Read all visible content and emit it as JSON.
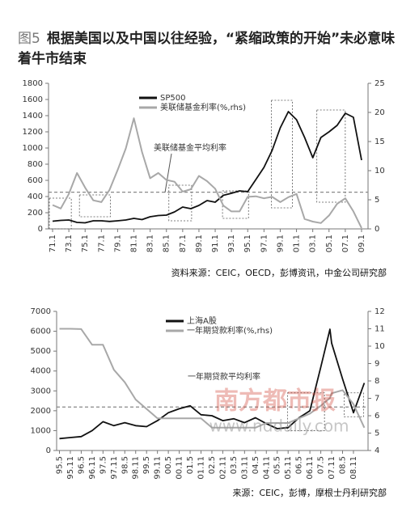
{
  "figure_label": "图5",
  "title": "根据美国以及中国以往经验，“紧缩政策的开始”未必意味着牛市结束",
  "watermark": [
    "南方都市报",
    "www.nddaily.com"
  ],
  "chart_data": [
    {
      "type": "line",
      "x": [
        1971,
        1972,
        1973,
        1974,
        1975,
        1976,
        1977,
        1978,
        1979,
        1980,
        1981,
        1982,
        1983,
        1984,
        1985,
        1986,
        1987,
        1988,
        1989,
        1990,
        1991,
        1992,
        1993,
        1994,
        1995,
        1996,
        1997,
        1998,
        1999,
        2000,
        2001,
        2002,
        2003,
        2004,
        2005,
        2006,
        2007,
        2008,
        2009
      ],
      "xlim": [
        1970.5,
        2009.8
      ],
      "xticks": [
        {
          "value": 1971,
          "label": "71.1"
        },
        {
          "value": 1973,
          "label": "73.1"
        },
        {
          "value": 1975,
          "label": "75.1"
        },
        {
          "value": 1977,
          "label": "77.1"
        },
        {
          "value": 1979,
          "label": "79.1"
        },
        {
          "value": 1981,
          "label": "81.1"
        },
        {
          "value": 1983,
          "label": "83.1"
        },
        {
          "value": 1985,
          "label": "85.1"
        },
        {
          "value": 1987,
          "label": "87.1"
        },
        {
          "value": 1989,
          "label": "89.1"
        },
        {
          "value": 1991,
          "label": "91.1"
        },
        {
          "value": 1993,
          "label": "93.1"
        },
        {
          "value": 1995,
          "label": "95.1"
        },
        {
          "value": 1997,
          "label": "97.1"
        },
        {
          "value": 1999,
          "label": "99.1"
        },
        {
          "value": 2001,
          "label": "01.1"
        },
        {
          "value": 2003,
          "label": "03.1"
        },
        {
          "value": 2005,
          "label": "05.1"
        },
        {
          "value": 2007,
          "label": "07.1"
        },
        {
          "value": 2009,
          "label": "09.1"
        }
      ],
      "ylim": [
        0,
        1800
      ],
      "yticks": [
        0,
        200,
        400,
        600,
        800,
        1000,
        1200,
        1400,
        1600,
        1800
      ],
      "y2lim": [
        0,
        25
      ],
      "y2ticks": [
        0,
        5,
        10,
        15,
        20,
        25
      ],
      "series": [
        {
          "name": "SP500",
          "color": "#111111",
          "values": [
            95,
            105,
            110,
            80,
            75,
            100,
            100,
            92,
            100,
            110,
            130,
            115,
            150,
            165,
            170,
            210,
            270,
            250,
            290,
            350,
            330,
            415,
            440,
            470,
            460,
            610,
            760,
            970,
            1250,
            1450,
            1350,
            1130,
            880,
            1130,
            1200,
            1280,
            1430,
            1380,
            850
          ]
        },
        {
          "name": "美联储基金利率(%,rhs)",
          "color": "#a8a8a8",
          "axis": "y2",
          "values": [
            4.1,
            3.5,
            6,
            9.6,
            7.1,
            4.9,
            4.6,
            6.7,
            10.1,
            13.8,
            19,
            13.2,
            8.7,
            9.6,
            8.4,
            8.1,
            6.4,
            6.8,
            9.1,
            8.2,
            6.9,
            4,
            3,
            3,
            5.5,
            5.6,
            5.25,
            5.5,
            4.6,
            5.45,
            6,
            1.7,
            1.25,
            1,
            2.3,
            4.3,
            5.25,
            3,
            0.15
          ]
        }
      ],
      "annotation": {
        "text": "美联储基金平均利率",
        "y2": 6.3
      },
      "highlights": [
        {
          "x": [
            1970.6,
            1973.3
          ],
          "y": [
            0,
            380
          ]
        },
        {
          "x": [
            1974.3,
            1978.1
          ],
          "y": [
            150,
            420
          ]
        },
        {
          "x": [
            1985.3,
            1988.1
          ],
          "y": [
            100,
            540
          ]
        },
        {
          "x": [
            1991.9,
            1995.1
          ],
          "y": [
            130,
            470
          ]
        },
        {
          "x": [
            1997.9,
            2000.5
          ],
          "y": [
            260,
            1590
          ]
        },
        {
          "x": [
            2003.5,
            2007
          ],
          "y": [
            330,
            1470
          ]
        }
      ],
      "source": "资料来源：CEIC，OECD，彭博资讯，中金公司研究部"
    },
    {
      "type": "line",
      "x": [
        1995.33,
        1995.83,
        1996.33,
        1996.83,
        1997.33,
        1997.83,
        1998.33,
        1998.83,
        1999.33,
        1999.83,
        2000.33,
        2000.83,
        2001.33,
        2001.83,
        2002.33,
        2002.83,
        2003.33,
        2003.83,
        2004.33,
        2004.83,
        2005.33,
        2005.83,
        2006.33,
        2006.83,
        2007.33,
        2007.75,
        2007.83,
        2008.33,
        2008.83,
        2009.33
      ],
      "xlim": [
        1995.2,
        2009.5
      ],
      "xticks": [
        {
          "value": 1995.33,
          "label": "95.5"
        },
        {
          "value": 1995.83,
          "label": "95.11"
        },
        {
          "value": 1996.33,
          "label": "96.5"
        },
        {
          "value": 1996.83,
          "label": "96.11"
        },
        {
          "value": 1997.33,
          "label": "97.5"
        },
        {
          "value": 1997.83,
          "label": "97.11"
        },
        {
          "value": 1998.33,
          "label": "98.5"
        },
        {
          "value": 1998.83,
          "label": "98.11"
        },
        {
          "value": 1999.33,
          "label": "99.5"
        },
        {
          "value": 1999.83,
          "label": "99.11"
        },
        {
          "value": 2000.33,
          "label": "00.5"
        },
        {
          "value": 2000.83,
          "label": "00.11"
        },
        {
          "value": 2001.33,
          "label": "01.5"
        },
        {
          "value": 2001.83,
          "label": "01.11"
        },
        {
          "value": 2002.33,
          "label": "02.5"
        },
        {
          "value": 2002.83,
          "label": "02.11"
        },
        {
          "value": 2003.33,
          "label": "03.5"
        },
        {
          "value": 2003.83,
          "label": "03.11"
        },
        {
          "value": 2004.33,
          "label": "04.5"
        },
        {
          "value": 2004.83,
          "label": "04.11"
        },
        {
          "value": 2005.33,
          "label": "05.5"
        },
        {
          "value": 2005.83,
          "label": "05.11"
        },
        {
          "value": 2006.33,
          "label": "06.5"
        },
        {
          "value": 2006.83,
          "label": "06.11"
        },
        {
          "value": 2007.33,
          "label": "07.5"
        },
        {
          "value": 2007.83,
          "label": "07.11"
        },
        {
          "value": 2008.33,
          "label": "08.5"
        },
        {
          "value": 2008.83,
          "label": "08.11"
        }
      ],
      "ylim": [
        0,
        7000
      ],
      "yticks": [
        0,
        1000,
        2000,
        3000,
        4000,
        5000,
        6000,
        7000
      ],
      "y2lim": [
        4,
        12
      ],
      "y2ticks": [
        4,
        5,
        6,
        7,
        8,
        9,
        10,
        11,
        12
      ],
      "series": [
        {
          "name": "上海A股",
          "color": "#111111",
          "values": [
            600,
            650,
            700,
            1000,
            1450,
            1250,
            1400,
            1250,
            1200,
            1500,
            1900,
            2100,
            2250,
            1800,
            1750,
            1500,
            1600,
            1400,
            1650,
            1350,
            1100,
            1150,
            1650,
            2000,
            4200,
            6100,
            5400,
            3600,
            1900,
            3400
          ]
        },
        {
          "name": "一年期贷款利率(%,rhs)",
          "color": "#a8a8a8",
          "axis": "y2",
          "values": [
            11,
            11,
            10.98,
            10.08,
            10.08,
            8.64,
            7.92,
            6.93,
            6.39,
            5.85,
            5.85,
            5.85,
            5.85,
            5.85,
            5.31,
            5.31,
            5.31,
            5.31,
            5.31,
            5.58,
            5.58,
            5.58,
            5.85,
            6.12,
            6.57,
            7.02,
            7.29,
            7.47,
            6.66,
            5.31
          ]
        }
      ],
      "annotation": {
        "text": "一年期贷款平均利率",
        "y2": 6.5
      },
      "highlights": [
        {
          "x": [
            2005.8,
            2007.5
          ],
          "y": [
            1000,
            2900
          ]
        },
        {
          "x": [
            2008.4,
            2009.3
          ],
          "y": [
            1700,
            2900
          ]
        }
      ],
      "source": "来源：CEIC，彭博，摩根士丹利研究部"
    }
  ]
}
